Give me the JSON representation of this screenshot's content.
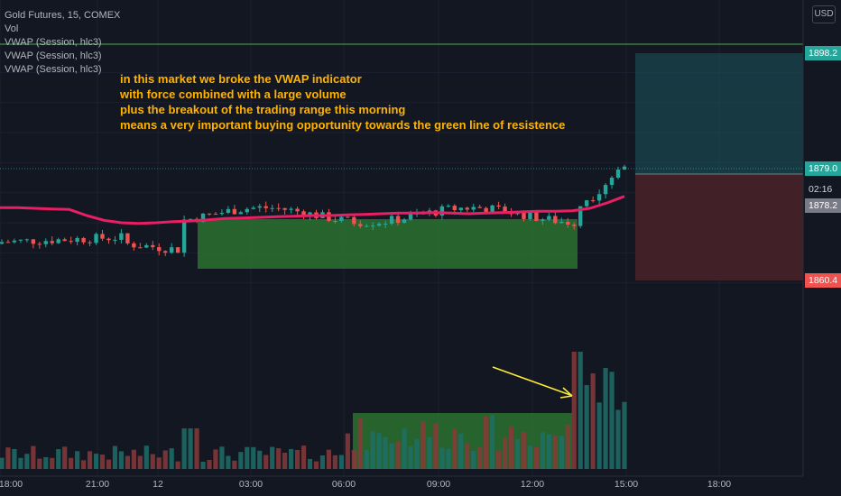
{
  "legend": {
    "symbol": "Gold Futures, 15, COMEX",
    "vol": "Vol",
    "vwap1": "VWAP (Session, hlc3)",
    "vwap2": "VWAP (Session, hlc3)",
    "vwap3": "VWAP (Session, hlc3)"
  },
  "annotation": {
    "line1": "in this market we broke the VWAP indicator",
    "line2": "with force combined with a large volume",
    "line3": "plus the breakout of the trading range this morning",
    "line4": "means a very important buying opportunity towards the green line of resistence"
  },
  "currency_button": "USD",
  "price_labels": {
    "target": "1898.2",
    "current": "1879.0",
    "countdown": "02:16",
    "entry": "1878.2",
    "stop": "1860.4"
  },
  "colors": {
    "background": "#131722",
    "up": "#26a69a",
    "down": "#ef5350",
    "vwap": "#e91e63",
    "resistance": "#4caf50",
    "range_box": "#2e7d32",
    "arrow": "#ffeb3b",
    "annotation_text": "#ffb300"
  },
  "chart_data": {
    "type": "candlestick",
    "title": "Gold Futures, 15, COMEX",
    "x_ticks": [
      "18:00",
      "21:00",
      "12",
      "03:00",
      "06:00",
      "09:00",
      "12:00",
      "15:00",
      "18:00"
    ],
    "y_range": [
      1855,
      1905
    ],
    "resistance_level": 1899.6,
    "position": {
      "entry": 1878.2,
      "target": 1898.2,
      "stop": 1860.4
    },
    "current_price": 1879.0,
    "range_box": {
      "from": "03:00 approx",
      "to": "13:15 approx",
      "low": 1868.5,
      "high": 1874.5
    },
    "vwap": [
      1872.5,
      1872.5,
      1872.4,
      1872.3,
      1872.2,
      1871.2,
      1870.4,
      1870.0,
      1869.9,
      1870.0,
      1870.2,
      1870.3,
      1870.5,
      1870.7,
      1870.8,
      1870.9,
      1871.0,
      1871.1,
      1871.2,
      1871.2,
      1871.3,
      1871.4,
      1871.5,
      1871.6,
      1871.6,
      1871.7,
      1871.6,
      1871.5,
      1871.6,
      1871.7,
      1871.8,
      1871.9,
      1871.9,
      1872.0,
      1872.4,
      1873.3,
      1874.4
    ],
    "candles_summary": "approx 100 fifteen-minute candles from ~1866 rising into a 1868.5-1874.5 range, breakout to ~1880",
    "volume_note": "large volume spike at breakout"
  }
}
